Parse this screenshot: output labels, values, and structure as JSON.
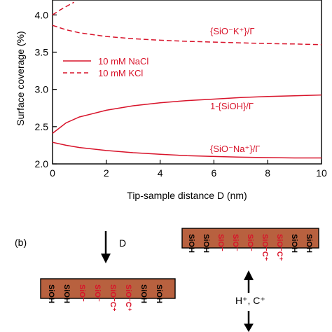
{
  "chart_data": {
    "type": "line",
    "xlabel": "Tip-sample distance D (nm)",
    "ylabel": "Surface coverage (%)",
    "xlim": [
      0,
      10
    ],
    "ylim": [
      2.0,
      4.2
    ],
    "x_ticks": [
      "0",
      "2",
      "4",
      "6",
      "8",
      "10"
    ],
    "y_ticks": [
      "2.0",
      "2.5",
      "3.0",
      "3.5",
      "4.0"
    ],
    "grid": false,
    "legend_position": "middle-left",
    "legend": [
      {
        "label": "10 mM NaCl",
        "style": "solid"
      },
      {
        "label": "10 mM KCl",
        "style": "dashed"
      }
    ],
    "series": [
      {
        "name": "{SiO⁻Na⁺}/Γ",
        "style": "solid",
        "color": "#d8132a",
        "x": [
          0.0,
          0.5,
          1.0,
          2.0,
          3.0,
          4.0,
          5.0,
          6.0,
          7.0,
          8.0,
          9.0,
          10.0
        ],
        "y": [
          2.29,
          2.25,
          2.22,
          2.18,
          2.15,
          2.13,
          2.11,
          2.1,
          2.09,
          2.085,
          2.08,
          2.08
        ]
      },
      {
        "name": "1-{SiOH}/Γ",
        "style": "solid",
        "color": "#d8132a",
        "x": [
          0.0,
          0.5,
          1.0,
          2.0,
          3.0,
          4.0,
          5.0,
          6.0,
          7.0,
          8.0,
          9.0,
          10.0
        ],
        "y": [
          2.41,
          2.55,
          2.63,
          2.72,
          2.78,
          2.82,
          2.85,
          2.87,
          2.89,
          2.905,
          2.915,
          2.925
        ]
      },
      {
        "name": "{SiO⁻K⁺}/Γ",
        "style": "dashed",
        "color": "#d8132a",
        "x": [
          0.0,
          0.5,
          1.0,
          2.0,
          3.0,
          4.0,
          5.0,
          6.0,
          7.0,
          8.0,
          9.0,
          10.0
        ],
        "y": [
          3.86,
          3.8,
          3.76,
          3.71,
          3.68,
          3.66,
          3.645,
          3.635,
          3.625,
          3.615,
          3.61,
          3.6
        ]
      },
      {
        "name": "",
        "style": "dashed",
        "color": "#d8132a",
        "x": [
          0.0,
          0.3,
          0.6,
          0.8
        ],
        "y": [
          4.0,
          4.07,
          4.13,
          4.17
        ]
      }
    ],
    "annotations": {
      "kcl_label": "{SiO⁻K⁺}/Γ",
      "sioh_label": "1-{SiOH}/Γ",
      "nacl_label": "{SiO⁻Na⁺}/Γ"
    }
  },
  "schematic": {
    "panel_label": "(b)",
    "distance_label": "D",
    "ions_label": "H⁺, C⁺",
    "colors": {
      "surface": "#b8613f",
      "acid": "#000000",
      "base": "#d8132a"
    },
    "lower_groups": [
      "SiOH",
      "SiOH",
      "SiO⁻",
      "SiO⁻",
      "SiO⁻C⁺",
      "SiO⁻C⁺",
      "SiOH",
      "SiOH"
    ],
    "upper_groups": [
      "SiOH",
      "SiOH",
      "SiO⁻",
      "SiO⁻",
      "SiO⁻",
      "SiO⁻C⁺",
      "SiO⁻C⁺",
      "SiOH",
      "SiOH"
    ]
  }
}
